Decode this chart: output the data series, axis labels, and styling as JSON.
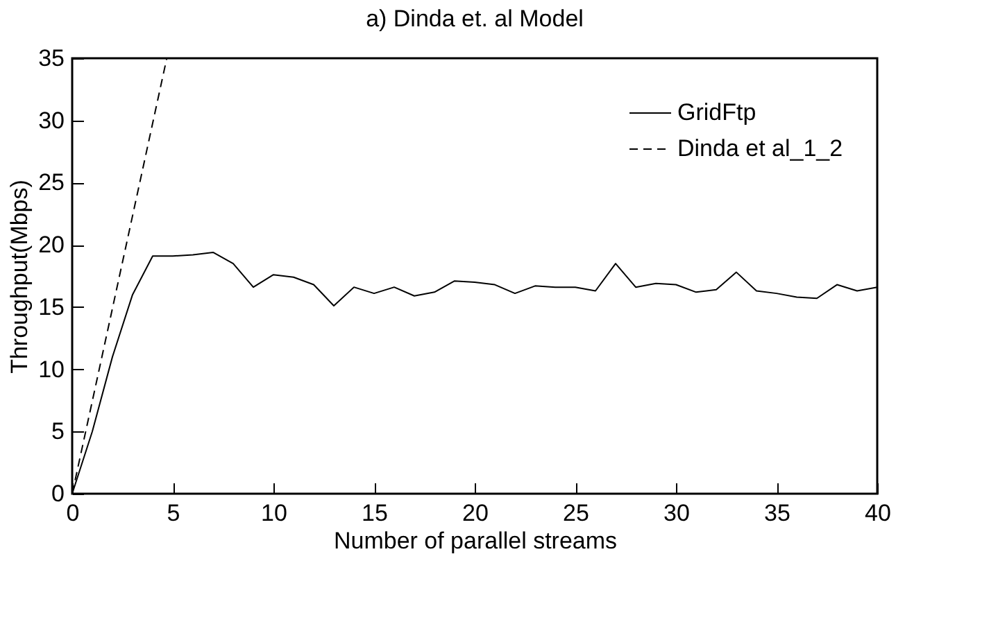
{
  "chart_data": {
    "type": "line",
    "title": "a) Dinda et. al Model",
    "xlabel": "Number of parallel streams",
    "ylabel": "Throughput(Mbps)",
    "xlim": [
      0,
      40
    ],
    "xticks": [
      0,
      5,
      10,
      15,
      20,
      25,
      30,
      35,
      40
    ],
    "ylim": [
      0,
      35
    ],
    "yticks": [
      0,
      5,
      10,
      15,
      20,
      25,
      30,
      35
    ],
    "grid": false,
    "legend": "top right",
    "marker": "none",
    "series": [
      {
        "name": "GridFtp",
        "color": "#000000",
        "line_style": "solid",
        "x": [
          0,
          1,
          2,
          3,
          4,
          5,
          6,
          7,
          8,
          9,
          10,
          11,
          12,
          13,
          14,
          15,
          16,
          17,
          18,
          19,
          20,
          21,
          22,
          23,
          24,
          25,
          26,
          27,
          28,
          29,
          30,
          31,
          32,
          33,
          34,
          35,
          36,
          37,
          38,
          39,
          40
        ],
        "values": [
          0,
          5,
          11,
          16,
          19.1,
          19.1,
          19.2,
          19.4,
          18.5,
          16.6,
          17.6,
          17.4,
          16.8,
          15.1,
          16.6,
          16.1,
          16.6,
          15.9,
          16.2,
          17.1,
          17,
          16.8,
          16.1,
          16.7,
          16.6,
          16.6,
          16.3,
          18.5,
          16.6,
          16.9,
          16.8,
          16.2,
          16.4,
          17.8,
          16.3,
          16.1,
          15.8,
          15.7,
          16.8,
          16.3,
          16.6
        ]
      },
      {
        "name": "Dinda et al_1_2",
        "color": "#000000",
        "line_style": "dashed",
        "x": [
          0,
          4.7
        ],
        "values": [
          0,
          35
        ]
      }
    ]
  }
}
